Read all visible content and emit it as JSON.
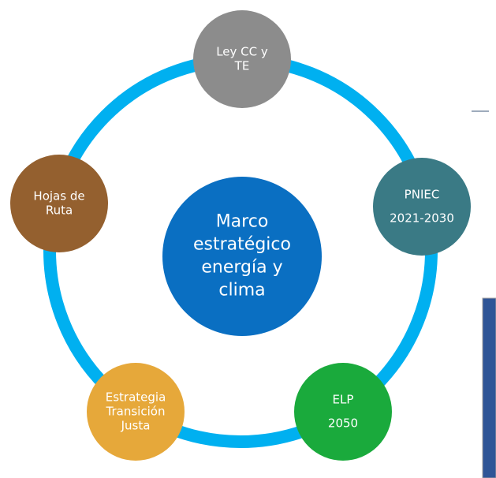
{
  "center": {
    "lines": [
      "Marco",
      "estratégico",
      "energía y",
      "clima"
    ]
  },
  "nodes": [
    {
      "lines": [
        "Ley CC y",
        "TE"
      ]
    },
    {
      "lines": [
        "PNIEC",
        "2021-2030"
      ]
    },
    {
      "lines": [
        "ELP",
        "2050"
      ]
    },
    {
      "lines": [
        "Estrategia",
        "Transición",
        "Justa"
      ]
    },
    {
      "lines": [
        "Hojas de",
        "Ruta"
      ]
    }
  ]
}
